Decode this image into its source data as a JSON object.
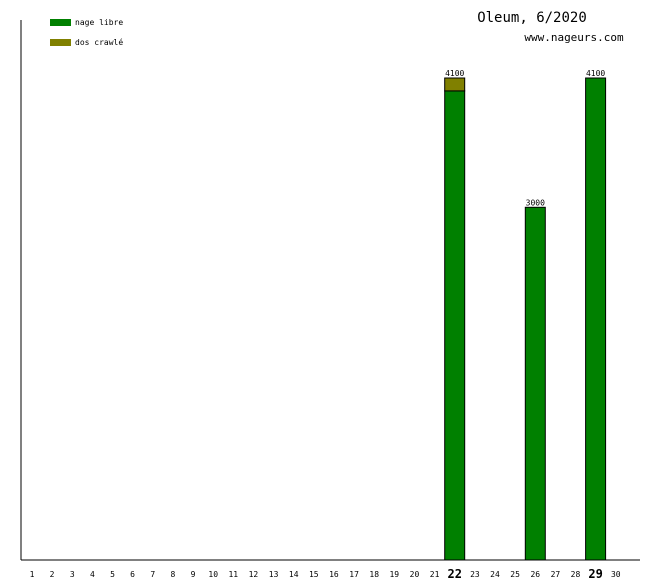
{
  "chart_data": {
    "type": "bar",
    "title": "Oleum, 6/2020",
    "subtitle": "www.nageurs.com",
    "categories": [
      "1",
      "2",
      "3",
      "4",
      "5",
      "6",
      "7",
      "8",
      "9",
      "10",
      "11",
      "12",
      "13",
      "14",
      "15",
      "16",
      "17",
      "18",
      "19",
      "20",
      "21",
      "22",
      "23",
      "24",
      "25",
      "26",
      "27",
      "28",
      "29",
      "30"
    ],
    "highlighted_categories": [
      "22",
      "29"
    ],
    "ylim": [
      0,
      4100
    ],
    "stacked": true,
    "series": [
      {
        "name": "nage libre",
        "color": "#008000",
        "values": [
          0,
          0,
          0,
          0,
          0,
          0,
          0,
          0,
          0,
          0,
          0,
          0,
          0,
          0,
          0,
          0,
          0,
          0,
          0,
          0,
          0,
          3990,
          0,
          0,
          0,
          3000,
          0,
          0,
          4100,
          0
        ]
      },
      {
        "name": "dos crawlé",
        "color": "#808000",
        "values": [
          0,
          0,
          0,
          0,
          0,
          0,
          0,
          0,
          0,
          0,
          0,
          0,
          0,
          0,
          0,
          0,
          0,
          0,
          0,
          0,
          0,
          110,
          0,
          0,
          0,
          0,
          0,
          0,
          0,
          0
        ]
      }
    ],
    "totals": [
      0,
      0,
      0,
      0,
      0,
      0,
      0,
      0,
      0,
      0,
      0,
      0,
      0,
      0,
      0,
      0,
      0,
      0,
      0,
      0,
      0,
      4100,
      0,
      0,
      0,
      3000,
      0,
      0,
      4100,
      0
    ],
    "legend_position": "top-left",
    "grid": false
  }
}
